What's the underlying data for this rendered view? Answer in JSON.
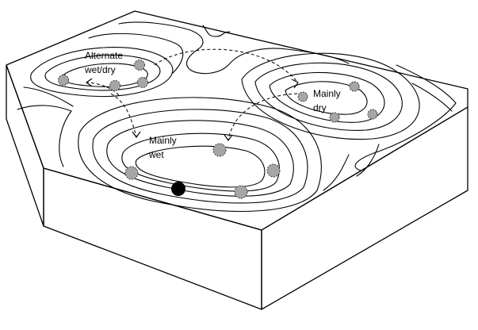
{
  "diagram": {
    "labels": {
      "alternate_line1": "Alternate",
      "alternate_line2": "wet/dry",
      "dry_line1": "Mainly",
      "dry_line2": "dry",
      "wet_line1": "Mainly",
      "wet_line2": "wet"
    },
    "colors": {
      "stroke": "#000000",
      "site_fill": "#a6a6a6",
      "site_stroke": "#3a3a3a",
      "featured_site": "#000000",
      "background": "#ffffff"
    },
    "sites": {
      "alternate_basin_count": 4,
      "dry_basin_count": 4,
      "wet_basin_count": 5,
      "featured_site_count": 1
    }
  }
}
